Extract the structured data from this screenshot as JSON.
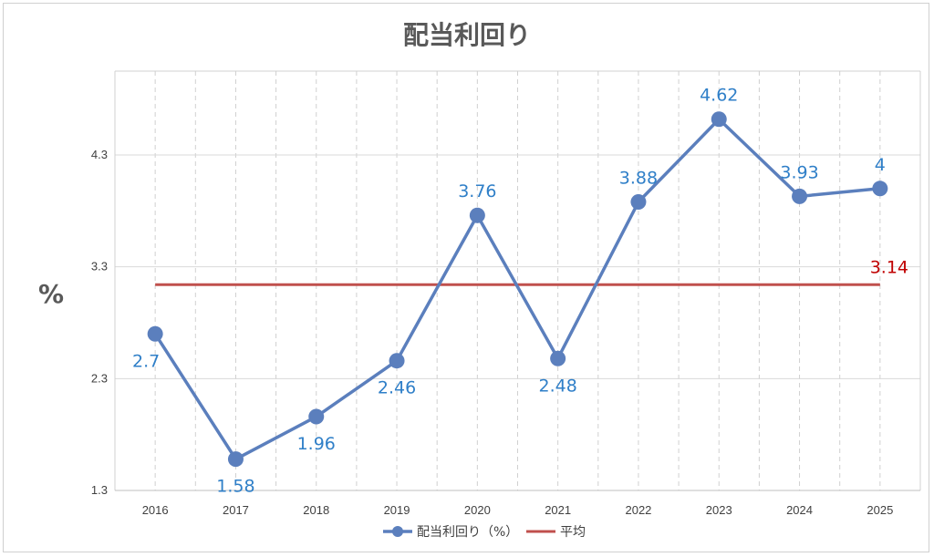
{
  "chart_data": {
    "type": "line",
    "title": "配当利回り",
    "ylabel": "%",
    "xlabel": "",
    "categories": [
      "2016",
      "2017",
      "2018",
      "2019",
      "2020",
      "2021",
      "2022",
      "2023",
      "2024",
      "2025"
    ],
    "ylim": [
      1.3,
      5.05
    ],
    "yticks": [
      "1.3",
      "2.3",
      "3.3",
      "4.3"
    ],
    "grid": true,
    "legend_position": "bottom",
    "series": [
      {
        "name": "配当利回り（%）",
        "values": [
          2.7,
          1.58,
          1.96,
          2.46,
          3.76,
          2.48,
          3.88,
          4.62,
          3.93,
          4
        ],
        "labels": [
          "2.7",
          "1.58",
          "1.96",
          "2.46",
          "3.76",
          "2.48",
          "3.88",
          "4.62",
          "3.93",
          "4"
        ],
        "color": "#5b7fbd",
        "label_color": "#2f7fc8"
      },
      {
        "name": "平均",
        "value": 3.14,
        "label": "3.14",
        "color": "#c0504d",
        "label_color": "#c00000"
      }
    ]
  }
}
